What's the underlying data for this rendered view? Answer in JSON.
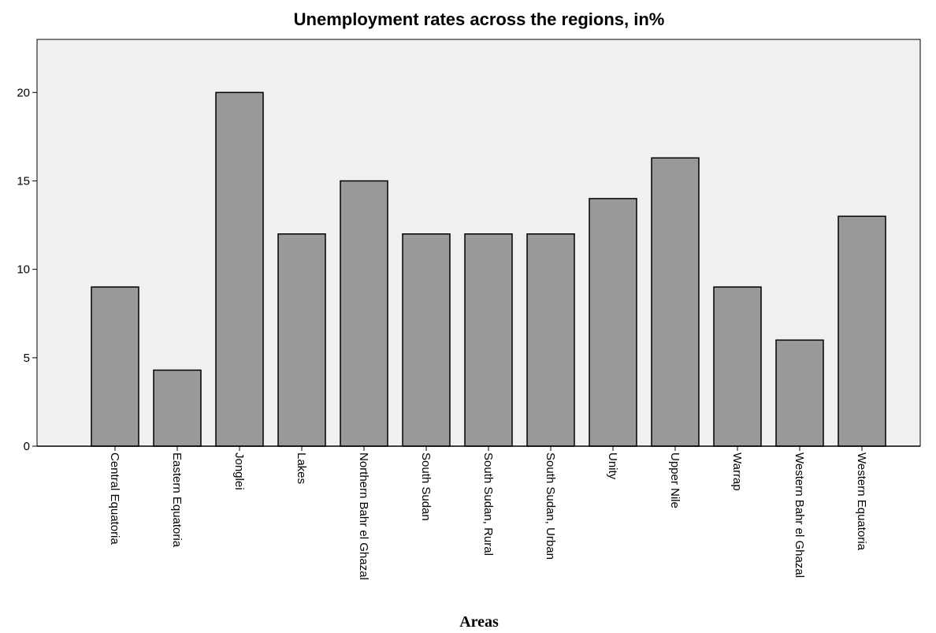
{
  "chart_data": {
    "type": "bar",
    "title": "Unemployment rates across the regions, in%",
    "xlabel": "Areas",
    "ylabel": "",
    "categories": [
      "Central Equatoria",
      "Eastern Equatoria",
      "Jonglei",
      "Lakes",
      "Northern Bahr el Ghazal",
      "South Sudan",
      "South Sudan, Rural",
      "South Sudan, Urban",
      "Unity",
      "Upper Nile",
      "Warrap",
      "Western Bahr el Ghazal",
      "Western Equatoria"
    ],
    "values": [
      9,
      4.3,
      20,
      12,
      15,
      12,
      12,
      12,
      14,
      16.3,
      9,
      6,
      13
    ],
    "ylim": [
      0,
      23
    ],
    "yticks": [
      "0",
      "5",
      "10",
      "15",
      "20"
    ],
    "grid": false,
    "legend": "none",
    "colors": {
      "plot_background": "#f0f0f0",
      "bar_fill": "#999999",
      "bar_stroke": "#000000",
      "axis": "#000000"
    }
  }
}
